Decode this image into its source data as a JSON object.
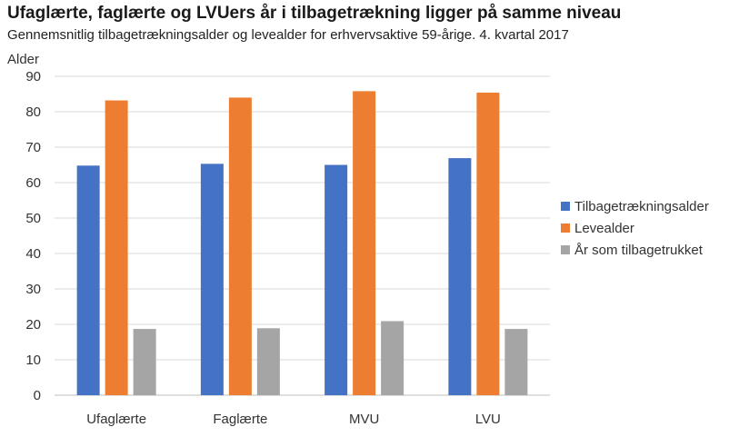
{
  "chart_data": {
    "type": "bar",
    "title": "Ufaglærte, faglærte og LVUers år i tilbagetrækning ligger på samme niveau",
    "subtitle": "Gennemsnitlig  tilbagetrækningsalder  og levealder  for erhvervsaktive 59-årige. 4. kvartal 2017",
    "ylabel": "Alder",
    "xlabel": "",
    "ylim": [
      0,
      90
    ],
    "yticks": [
      0,
      10,
      20,
      30,
      40,
      50,
      60,
      70,
      80,
      90
    ],
    "grid": true,
    "legend_position": "right",
    "categories": [
      "Ufaglærte",
      "Faglærte",
      "MVU",
      "LVU"
    ],
    "series": [
      {
        "name": "Tilbagetrækningsalder",
        "color": "#4472C4",
        "values": [
          64.8,
          65.3,
          65.0,
          66.9
        ]
      },
      {
        "name": "Levealder",
        "color": "#ED7D31",
        "values": [
          83.2,
          84.0,
          85.8,
          85.4
        ]
      },
      {
        "name": "År som tilbagetrukket",
        "color": "#A5A5A5",
        "values": [
          18.7,
          18.9,
          20.9,
          18.7
        ]
      }
    ]
  }
}
